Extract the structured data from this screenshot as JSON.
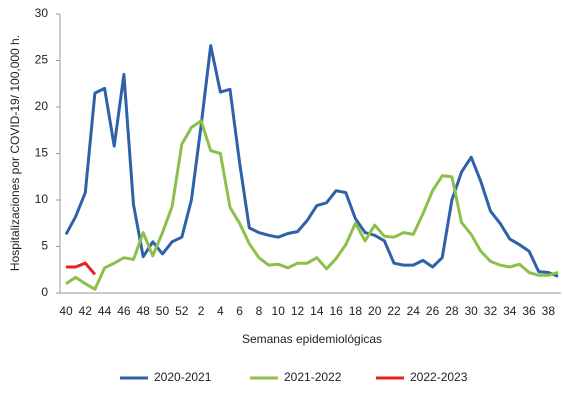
{
  "chart_data": {
    "type": "line",
    "y_label": "Hospitalizaciones por COVID-19/ 100,000 h.",
    "x_label": "Semanas epidemiológicas",
    "categories": [
      "40",
      null,
      "42",
      null,
      "44",
      null,
      "46",
      null,
      "48",
      null,
      "50",
      null,
      "52",
      null,
      "2",
      null,
      "4",
      null,
      "6",
      null,
      "8",
      null,
      "10",
      null,
      "12",
      null,
      "14",
      null,
      "16",
      null,
      "18",
      null,
      "20",
      null,
      "22",
      null,
      "24",
      null,
      "26",
      null,
      "28",
      null,
      "30",
      null,
      "32",
      null,
      "34",
      null,
      "36",
      null,
      "38",
      null
    ],
    "ylim": [
      0,
      30
    ],
    "yticks": [
      0,
      5,
      10,
      15,
      20,
      25,
      30
    ],
    "grid": false,
    "legend": "bottom",
    "series": [
      {
        "name": "2020-2021",
        "color": "#2e62a8",
        "values": [
          6.3,
          8.2,
          10.8,
          21.5,
          22,
          15.8,
          23.5,
          9.5,
          3.9,
          5.5,
          4.2,
          5.5,
          6,
          10,
          18,
          26.6,
          21.6,
          21.9,
          14,
          7,
          6.5,
          6.2,
          6,
          6.4,
          6.6,
          7.8,
          9.4,
          9.7,
          11,
          10.8,
          8,
          6.5,
          6.2,
          5.6,
          3.2,
          3,
          3,
          3.5,
          2.8,
          3.8,
          10,
          13,
          14.6,
          12,
          8.8,
          7.5,
          5.8,
          5.2,
          4.5,
          2.3,
          2.2,
          1.8
        ]
      },
      {
        "name": "2021-2022",
        "color": "#8cc04a",
        "values": [
          1,
          1.7,
          1,
          0.4,
          2.7,
          3.2,
          3.8,
          3.6,
          6.5,
          4,
          6.5,
          9.3,
          16,
          17.8,
          18.5,
          15.3,
          15,
          9.2,
          7.5,
          5.3,
          3.8,
          3,
          3.1,
          2.7,
          3.2,
          3.2,
          3.8,
          2.6,
          3.7,
          5.2,
          7.5,
          5.6,
          7.3,
          6.1,
          6,
          6.5,
          6.3,
          8.5,
          11,
          12.6,
          12.5,
          7.6,
          6.3,
          4.5,
          3.4,
          3,
          2.8,
          3.1,
          2.2,
          1.9,
          1.9,
          2.2
        ]
      },
      {
        "name": "2022-2023",
        "color": "#e8201e",
        "values": [
          2.8,
          2.8,
          3.2,
          2,
          null,
          null,
          null,
          null,
          null,
          null,
          null,
          null,
          null,
          null,
          null,
          null,
          null,
          null,
          null,
          null,
          null,
          null,
          null,
          null,
          null,
          null,
          null,
          null,
          null,
          null,
          null,
          null,
          null,
          null,
          null,
          null,
          null,
          null,
          null,
          null,
          null,
          null,
          null,
          null,
          null,
          null,
          null,
          null,
          null,
          null,
          null,
          null
        ]
      }
    ]
  }
}
